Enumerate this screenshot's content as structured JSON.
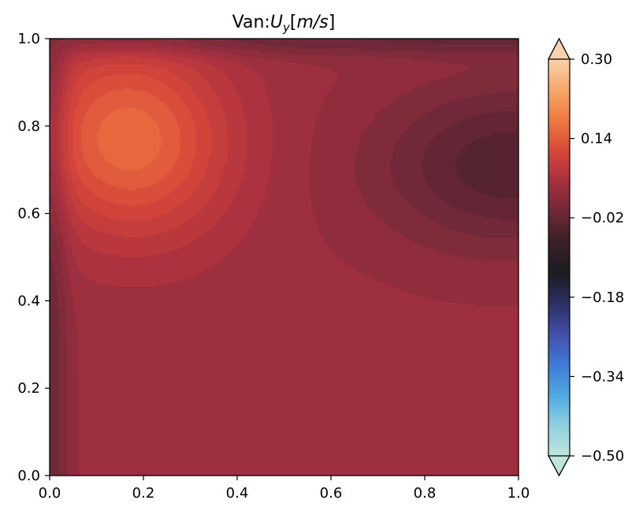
{
  "chart_data": {
    "type": "heatmap",
    "title": {
      "prefix": "Van:",
      "var": "U",
      "sub": "y",
      "unit_open": "[",
      "unit": "m/s",
      "unit_close": "]"
    },
    "xlabel": "",
    "ylabel": "",
    "xlim": [
      0.0,
      1.0
    ],
    "ylim": [
      0.0,
      1.0
    ],
    "x_ticks": [
      "0.0",
      "0.2",
      "0.4",
      "0.6",
      "0.8",
      "1.0"
    ],
    "y_ticks": [
      "0.0",
      "0.2",
      "0.4",
      "0.6",
      "0.8",
      "1.0"
    ],
    "colorbar": {
      "min": -0.5,
      "max": 0.3,
      "ticks": [
        -0.5,
        -0.34,
        -0.18,
        -0.02,
        0.14,
        0.3
      ],
      "tick_labels": [
        "−0.50",
        "−0.34",
        "−0.18",
        "−0.02",
        "0.14",
        "0.30"
      ],
      "extend": "both",
      "colormap": "icefire",
      "stops": [
        "#bde6dd",
        "#8fd0dd",
        "#4fa8e0",
        "#3f7ad8",
        "#434ea8",
        "#2b2f63",
        "#1c1c22",
        "#3a1f26",
        "#6e2838",
        "#a7303f",
        "#d8463a",
        "#ee7a3f",
        "#f7a86a",
        "#fbd0ac"
      ]
    },
    "field_features": [
      {
        "kind": "max",
        "x": 0.17,
        "y": 0.77,
        "value": 0.16
      },
      {
        "kind": "min",
        "x": 0.98,
        "y": 0.71,
        "value": -0.04
      },
      {
        "kind": "background",
        "value": 0.04
      }
    ]
  }
}
